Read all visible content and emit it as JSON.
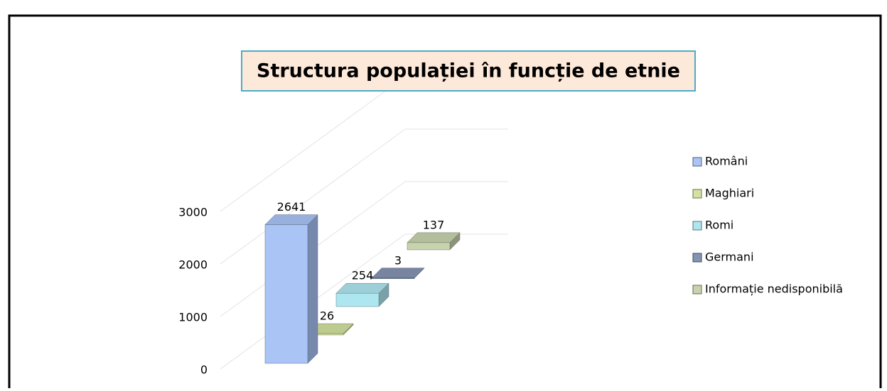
{
  "chart_data": {
    "type": "bar3d",
    "title": "Structura populației în funcție de etnie",
    "ylim": [
      0,
      3000
    ],
    "yticks": [
      0,
      1000,
      2000,
      3000
    ],
    "grid": true,
    "legend": "right",
    "series": [
      {
        "name": "Români",
        "color": "#a9c4f5",
        "values": [
          2641
        ]
      },
      {
        "name": "Maghiari",
        "color": "#d3e2a0",
        "values": [
          26
        ]
      },
      {
        "name": "Romi",
        "color": "#aee6f0",
        "values": [
          254
        ]
      },
      {
        "name": "Germani",
        "color": "#8494b3",
        "values": [
          3
        ]
      },
      {
        "name": "Informație nedisponibilă",
        "color": "#c7d3ad",
        "values": [
          137
        ]
      }
    ]
  }
}
